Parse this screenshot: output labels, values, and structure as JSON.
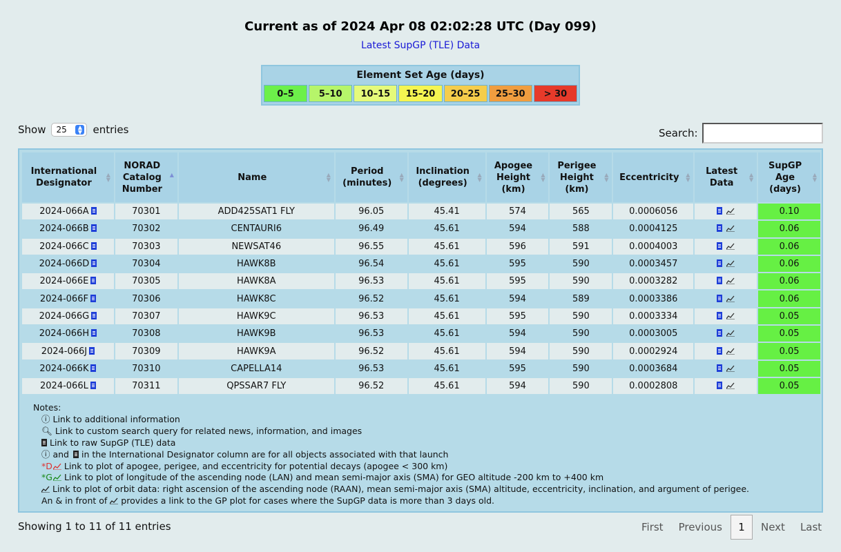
{
  "header": {
    "title": "Current as of 2024 Apr 08 02:02:28 UTC (Day 099)",
    "link": "Latest SupGP (TLE) Data"
  },
  "legend": {
    "title": "Element Set Age (days)",
    "bins": [
      {
        "label": "0–5",
        "color": "#6cf04a"
      },
      {
        "label": "5–10",
        "color": "#b6f56a"
      },
      {
        "label": "10–15",
        "color": "#e5fa7a"
      },
      {
        "label": "15–20",
        "color": "#f5f551"
      },
      {
        "label": "20–25",
        "color": "#f5cd4b"
      },
      {
        "label": "25–30",
        "color": "#f09d3f"
      },
      {
        "label": "> 30",
        "color": "#e63a2a"
      }
    ]
  },
  "controls": {
    "show_label": "Show",
    "entries_value": "25",
    "entries_label": "entries",
    "search_label": "Search:"
  },
  "table": {
    "columns": [
      [
        "International",
        "Designator"
      ],
      [
        "NORAD",
        "Catalog",
        "Number"
      ],
      [
        "Name"
      ],
      [
        "Period",
        "(minutes)"
      ],
      [
        "Inclination",
        "(degrees)"
      ],
      [
        "Apogee",
        "Height",
        "(km)"
      ],
      [
        "Perigee",
        "Height",
        "(km)"
      ],
      [
        "Eccentricity"
      ],
      [
        "Latest",
        "Data"
      ],
      [
        "SupGP",
        "Age",
        "(days)"
      ]
    ],
    "rows": [
      [
        "2024-066A",
        "70301",
        "ADD425SAT1 FLY",
        "96.05",
        "45.41",
        "574",
        "565",
        "0.0006056",
        "0.10"
      ],
      [
        "2024-066B",
        "70302",
        "CENTAURI6",
        "96.49",
        "45.61",
        "594",
        "588",
        "0.0004125",
        "0.06"
      ],
      [
        "2024-066C",
        "70303",
        "NEWSAT46",
        "96.55",
        "45.61",
        "596",
        "591",
        "0.0004003",
        "0.06"
      ],
      [
        "2024-066D",
        "70304",
        "HAWK8B",
        "96.54",
        "45.61",
        "595",
        "590",
        "0.0003457",
        "0.06"
      ],
      [
        "2024-066E",
        "70305",
        "HAWK8A",
        "96.53",
        "45.61",
        "595",
        "590",
        "0.0003282",
        "0.06"
      ],
      [
        "2024-066F",
        "70306",
        "HAWK8C",
        "96.52",
        "45.61",
        "594",
        "589",
        "0.0003386",
        "0.06"
      ],
      [
        "2024-066G",
        "70307",
        "HAWK9C",
        "96.53",
        "45.61",
        "595",
        "590",
        "0.0003334",
        "0.05"
      ],
      [
        "2024-066H",
        "70308",
        "HAWK9B",
        "96.53",
        "45.61",
        "594",
        "590",
        "0.0003005",
        "0.05"
      ],
      [
        "2024-066J",
        "70309",
        "HAWK9A",
        "96.52",
        "45.61",
        "594",
        "590",
        "0.0002924",
        "0.05"
      ],
      [
        "2024-066K",
        "70310",
        "CAPELLA14",
        "96.53",
        "45.61",
        "595",
        "590",
        "0.0003684",
        "0.05"
      ],
      [
        "2024-066L",
        "70311",
        "QPSSAR7 FLY",
        "96.52",
        "45.61",
        "594",
        "590",
        "0.0002808",
        "0.05"
      ]
    ]
  },
  "notes": {
    "title": "Notes:",
    "info": "ⓘ Link to additional information",
    "search": "🔍︎ Link to custom search query for related news, information, and images",
    "raw": "Link to raw SupGP (TLE) data",
    "intl_a": "ⓘ and",
    "intl_b": "in the International Designator column are for all objects associated with that launch",
    "decay_prefix": "*D",
    "decay": "Link to plot of apogee, perigee, and eccentricity for potential decays (apogee < 300 km)",
    "geo_prefix": "*G",
    "geo": "Link to plot of longitude of the ascending node (LAN) and mean semi-major axis (SMA) for GEO altitude -200 km to +400 km",
    "orbit": "Link to plot of orbit data: right ascension of the ascending node (RAAN), mean semi-major axis (SMA) altitude, eccentricity, inclination, and argument of perigee.",
    "gp_a": "An & in front of",
    "gp_b": "provides a link to the GP plot for cases where the SupGP data is more than 3 days old."
  },
  "footer": {
    "info": "Showing 1 to 11 of 11 entries",
    "first": "First",
    "previous": "Previous",
    "page": "1",
    "next": "Next",
    "last": "Last"
  }
}
